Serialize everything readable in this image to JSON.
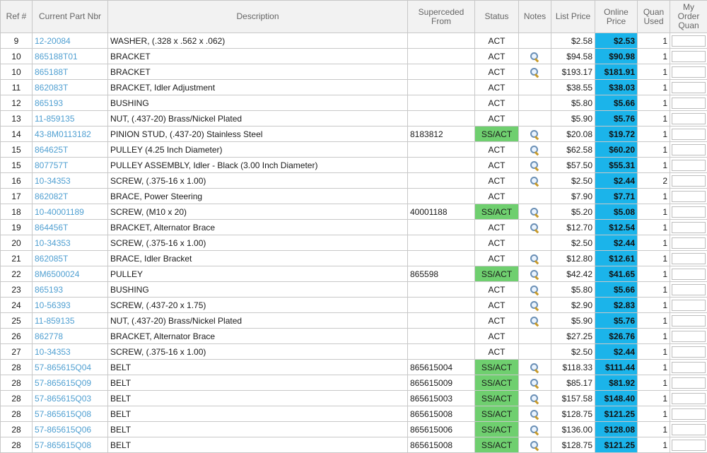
{
  "columns": {
    "ref": "Ref #",
    "part": "Current Part Nbr",
    "description": "Description",
    "superseded": "Superceded From",
    "status": "Status",
    "notes": "Notes",
    "list_price": "List Price",
    "online_price": "Online Price",
    "quan_used": "Quan Used",
    "my_order": "My Order Quan"
  },
  "colors": {
    "link": "#4f9fd1",
    "ss_act": "#6fcf6f",
    "online_price": "#1bb4ea",
    "header_bg": "#f2f2f2"
  },
  "notes_icon": "magnifier-icon",
  "rows": [
    {
      "ref": "9",
      "part": "12-20084",
      "desc": "WASHER, (.328 x .562 x .062)",
      "sup": "",
      "status": "ACT",
      "notes": false,
      "list": "$2.58",
      "online": "$2.53",
      "used": "1",
      "qty": ""
    },
    {
      "ref": "10",
      "part": "865188T01",
      "desc": "BRACKET",
      "sup": "",
      "status": "ACT",
      "notes": true,
      "list": "$94.58",
      "online": "$90.98",
      "used": "1",
      "qty": ""
    },
    {
      "ref": "10",
      "part": "865188T",
      "desc": "BRACKET",
      "sup": "",
      "status": "ACT",
      "notes": true,
      "list": "$193.17",
      "online": "$181.91",
      "used": "1",
      "qty": ""
    },
    {
      "ref": "11",
      "part": "862083T",
      "desc": "BRACKET, Idler Adjustment",
      "sup": "",
      "status": "ACT",
      "notes": false,
      "list": "$38.55",
      "online": "$38.03",
      "used": "1",
      "qty": ""
    },
    {
      "ref": "12",
      "part": "865193",
      "desc": "BUSHING",
      "sup": "",
      "status": "ACT",
      "notes": false,
      "list": "$5.80",
      "online": "$5.66",
      "used": "1",
      "qty": ""
    },
    {
      "ref": "13",
      "part": "11-859135",
      "desc": "NUT, (.437-20) Brass/Nickel Plated",
      "sup": "",
      "status": "ACT",
      "notes": false,
      "list": "$5.90",
      "online": "$5.76",
      "used": "1",
      "qty": ""
    },
    {
      "ref": "14",
      "part": "43-8M0113182",
      "desc": "PINION STUD, (.437-20) Stainless Steel",
      "sup": "8183812",
      "status": "SS/ACT",
      "notes": true,
      "list": "$20.08",
      "online": "$19.72",
      "used": "1",
      "qty": ""
    },
    {
      "ref": "15",
      "part": "864625T",
      "desc": "PULLEY (4.25 Inch Diameter)",
      "sup": "",
      "status": "ACT",
      "notes": true,
      "list": "$62.58",
      "online": "$60.20",
      "used": "1",
      "qty": ""
    },
    {
      "ref": "15",
      "part": "807757T",
      "desc": "PULLEY ASSEMBLY, Idler - Black (3.00 Inch Diameter)",
      "sup": "",
      "status": "ACT",
      "notes": true,
      "list": "$57.50",
      "online": "$55.31",
      "used": "1",
      "qty": ""
    },
    {
      "ref": "16",
      "part": "10-34353",
      "desc": "SCREW, (.375-16 x 1.00)",
      "sup": "",
      "status": "ACT",
      "notes": true,
      "list": "$2.50",
      "online": "$2.44",
      "used": "2",
      "qty": ""
    },
    {
      "ref": "17",
      "part": "862082T",
      "desc": "BRACE, Power Steering",
      "sup": "",
      "status": "ACT",
      "notes": false,
      "list": "$7.90",
      "online": "$7.71",
      "used": "1",
      "qty": ""
    },
    {
      "ref": "18",
      "part": "10-40001189",
      "desc": "SCREW, (M10 x 20)",
      "sup": "40001188",
      "status": "SS/ACT",
      "notes": true,
      "list": "$5.20",
      "online": "$5.08",
      "used": "1",
      "qty": ""
    },
    {
      "ref": "19",
      "part": "864456T",
      "desc": "BRACKET, Alternator Brace",
      "sup": "",
      "status": "ACT",
      "notes": true,
      "list": "$12.70",
      "online": "$12.54",
      "used": "1",
      "qty": ""
    },
    {
      "ref": "20",
      "part": "10-34353",
      "desc": "SCREW, (.375-16 x 1.00)",
      "sup": "",
      "status": "ACT",
      "notes": false,
      "list": "$2.50",
      "online": "$2.44",
      "used": "1",
      "qty": ""
    },
    {
      "ref": "21",
      "part": "862085T",
      "desc": "BRACE, Idler Bracket",
      "sup": "",
      "status": "ACT",
      "notes": true,
      "list": "$12.80",
      "online": "$12.61",
      "used": "1",
      "qty": ""
    },
    {
      "ref": "22",
      "part": "8M6500024",
      "desc": "PULLEY",
      "sup": "865598",
      "status": "SS/ACT",
      "notes": true,
      "list": "$42.42",
      "online": "$41.65",
      "used": "1",
      "qty": ""
    },
    {
      "ref": "23",
      "part": "865193",
      "desc": "BUSHING",
      "sup": "",
      "status": "ACT",
      "notes": true,
      "list": "$5.80",
      "online": "$5.66",
      "used": "1",
      "qty": ""
    },
    {
      "ref": "24",
      "part": "10-56393",
      "desc": "SCREW, (.437-20 x 1.75)",
      "sup": "",
      "status": "ACT",
      "notes": true,
      "list": "$2.90",
      "online": "$2.83",
      "used": "1",
      "qty": ""
    },
    {
      "ref": "25",
      "part": "11-859135",
      "desc": "NUT, (.437-20) Brass/Nickel Plated",
      "sup": "",
      "status": "ACT",
      "notes": true,
      "list": "$5.90",
      "online": "$5.76",
      "used": "1",
      "qty": ""
    },
    {
      "ref": "26",
      "part": "862778",
      "desc": "BRACKET, Alternator Brace",
      "sup": "",
      "status": "ACT",
      "notes": false,
      "list": "$27.25",
      "online": "$26.76",
      "used": "1",
      "qty": ""
    },
    {
      "ref": "27",
      "part": "10-34353",
      "desc": "SCREW, (.375-16 x 1.00)",
      "sup": "",
      "status": "ACT",
      "notes": false,
      "list": "$2.50",
      "online": "$2.44",
      "used": "1",
      "qty": ""
    },
    {
      "ref": "28",
      "part": "57-865615Q04",
      "desc": "BELT",
      "sup": "865615004",
      "status": "SS/ACT",
      "notes": true,
      "list": "$118.33",
      "online": "$111.44",
      "used": "1",
      "qty": ""
    },
    {
      "ref": "28",
      "part": "57-865615Q09",
      "desc": "BELT",
      "sup": "865615009",
      "status": "SS/ACT",
      "notes": true,
      "list": "$85.17",
      "online": "$81.92",
      "used": "1",
      "qty": ""
    },
    {
      "ref": "28",
      "part": "57-865615Q03",
      "desc": "BELT",
      "sup": "865615003",
      "status": "SS/ACT",
      "notes": true,
      "list": "$157.58",
      "online": "$148.40",
      "used": "1",
      "qty": ""
    },
    {
      "ref": "28",
      "part": "57-865615Q08",
      "desc": "BELT",
      "sup": "865615008",
      "status": "SS/ACT",
      "notes": true,
      "list": "$128.75",
      "online": "$121.25",
      "used": "1",
      "qty": ""
    },
    {
      "ref": "28",
      "part": "57-865615Q06",
      "desc": "BELT",
      "sup": "865615006",
      "status": "SS/ACT",
      "notes": true,
      "list": "$136.00",
      "online": "$128.08",
      "used": "1",
      "qty": ""
    },
    {
      "ref": "28",
      "part": "57-865615Q08",
      "desc": "BELT",
      "sup": "865615008",
      "status": "SS/ACT",
      "notes": true,
      "list": "$128.75",
      "online": "$121.25",
      "used": "1",
      "qty": ""
    }
  ]
}
